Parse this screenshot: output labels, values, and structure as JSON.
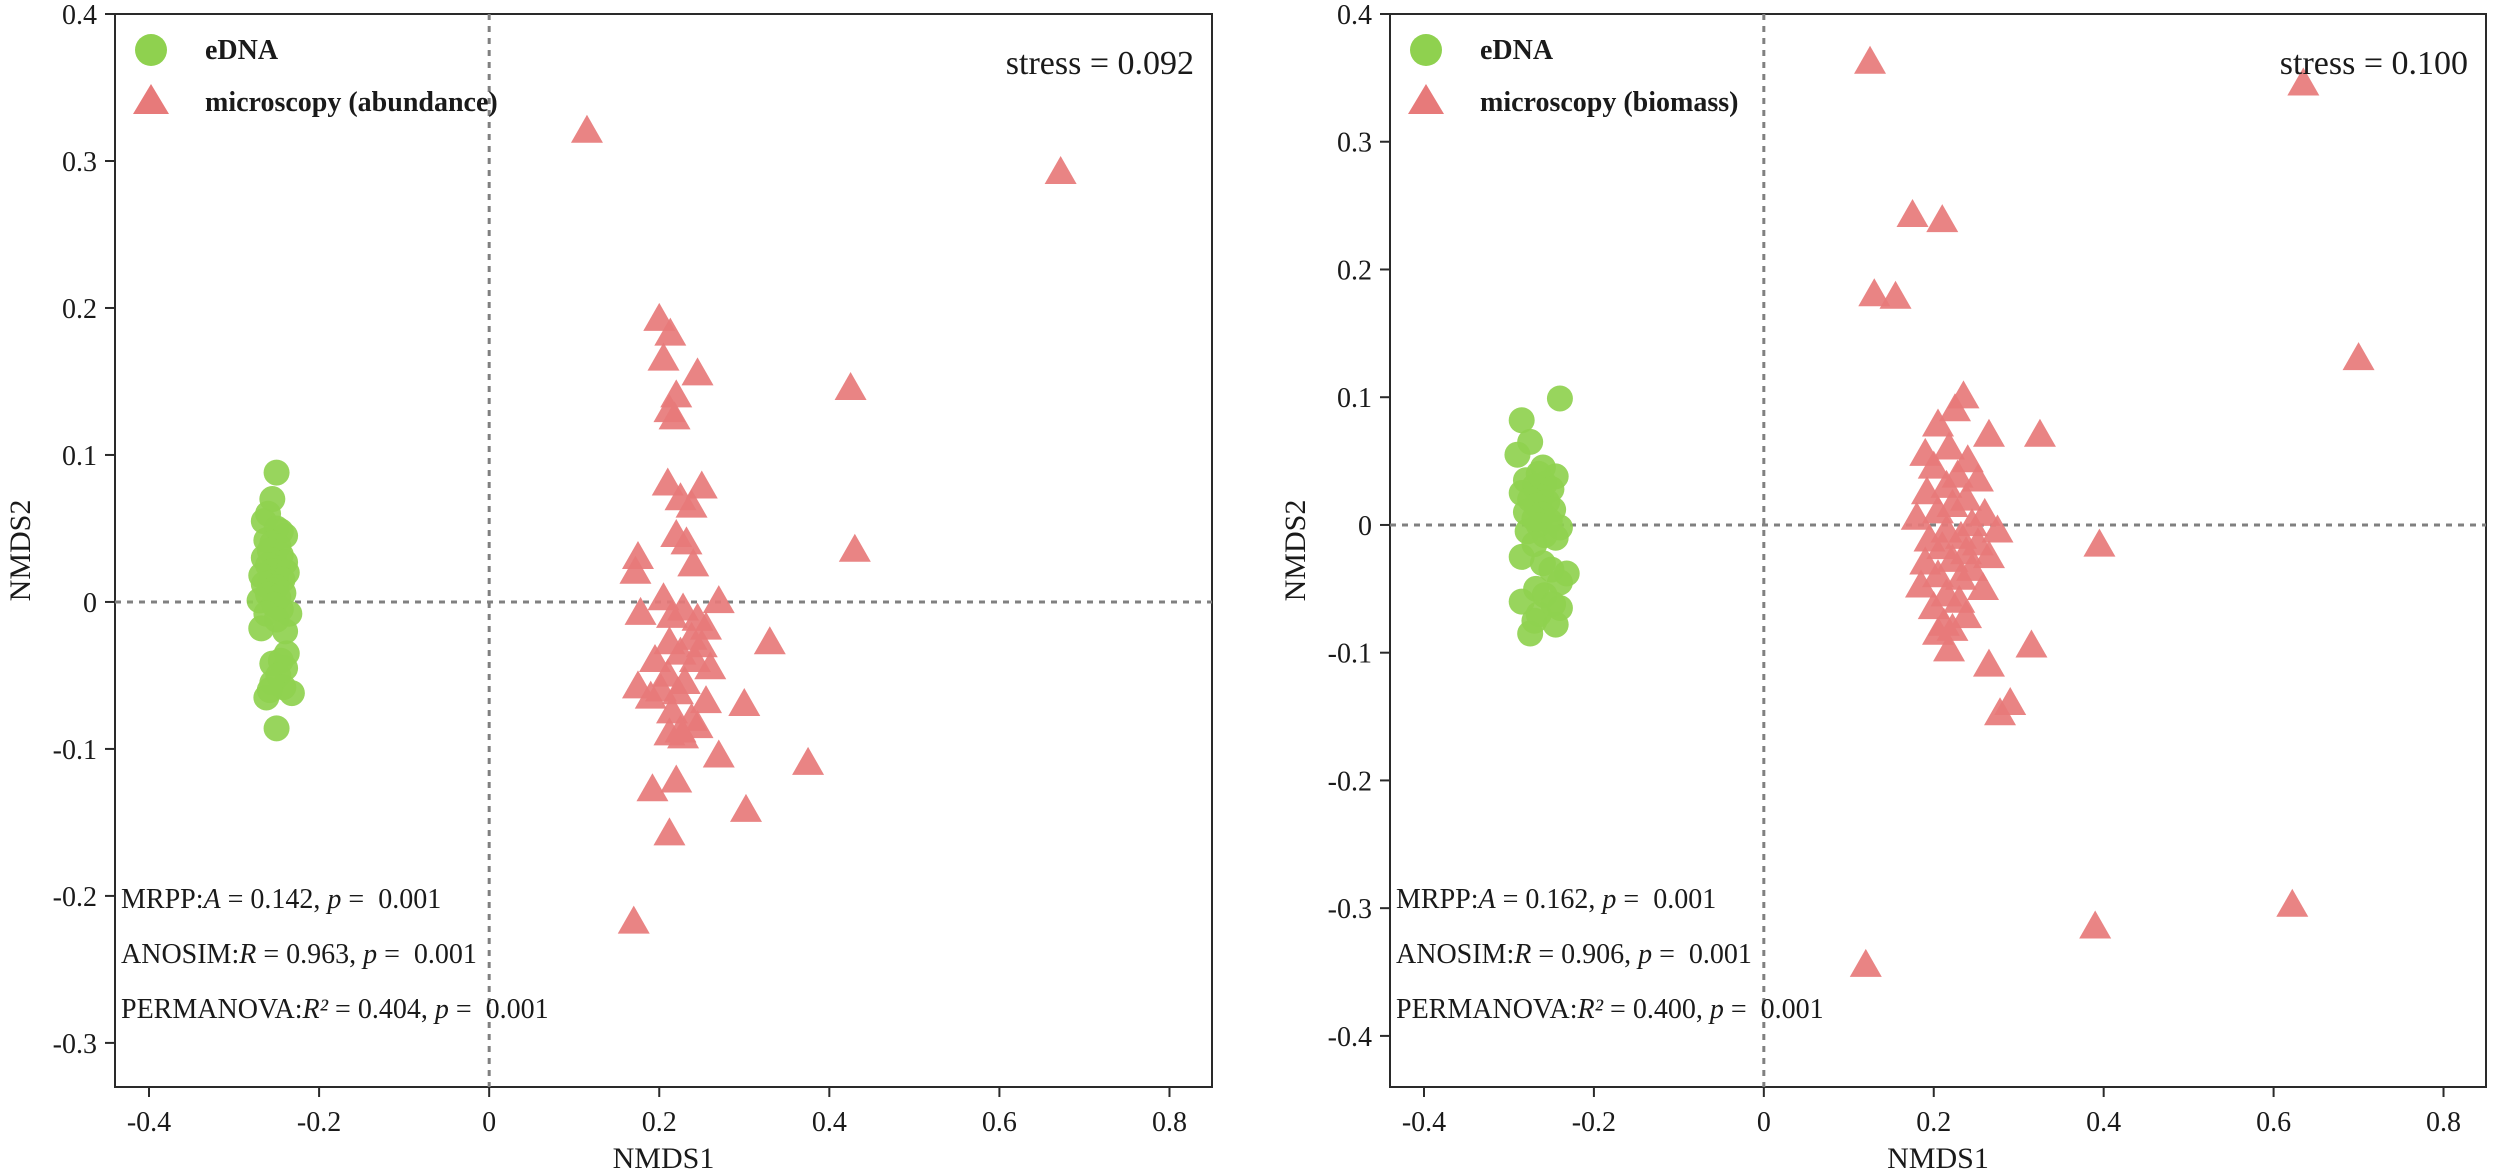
{
  "chart_data": [
    {
      "type": "scatter",
      "title": "",
      "xlabel": "NMDS1",
      "ylabel": "NMDS2",
      "xlim": [
        -0.44,
        0.85
      ],
      "ylim": [
        -0.33,
        0.4
      ],
      "xticks": [
        "-0.4",
        "-0.2",
        "0",
        "0.2",
        "0.4",
        "0.6",
        "0.8"
      ],
      "yticks": [
        "0.4",
        "0.3",
        "0.2",
        "0.1",
        "0",
        "-0.1",
        "-0.2",
        "-0.3"
      ],
      "grid": false,
      "legend_position": "top-left",
      "stress": "stress = 0.092",
      "stats": {
        "mrpp_label": "MRPP:",
        "mrpp_sym": "A",
        "mrpp_value": " = 0.142, ",
        "mrpp_p": "p",
        "mrpp_p_value": " =  0.001",
        "anosim_label": "ANOSIM:",
        "anosim_sym": "R",
        "anosim_value": " = 0.963, ",
        "anosim_p": "p",
        "anosim_p_value": " =  0.001",
        "permanova_label": "PERMANOVA:",
        "permanova_sym": "R²",
        "permanova_value": " = 0.404, ",
        "permanova_p": "p",
        "permanova_p_value": " =  0.001"
      },
      "series": [
        {
          "name": "eDNA",
          "marker": "circle",
          "color": "#8fd14f",
          "points": [
            [
              -0.25,
              0.088
            ],
            [
              -0.255,
              0.07
            ],
            [
              -0.26,
              0.06
            ],
            [
              -0.265,
              0.055
            ],
            [
              -0.25,
              0.05
            ],
            [
              -0.245,
              0.048
            ],
            [
              -0.24,
              0.045
            ],
            [
              -0.262,
              0.042
            ],
            [
              -0.255,
              0.04
            ],
            [
              -0.248,
              0.038
            ],
            [
              -0.258,
              0.035
            ],
            [
              -0.245,
              0.032
            ],
            [
              -0.265,
              0.03
            ],
            [
              -0.252,
              0.028
            ],
            [
              -0.24,
              0.027
            ],
            [
              -0.26,
              0.025
            ],
            [
              -0.248,
              0.023
            ],
            [
              -0.255,
              0.021
            ],
            [
              -0.238,
              0.02
            ],
            [
              -0.268,
              0.018
            ],
            [
              -0.25,
              0.016
            ],
            [
              -0.243,
              0.015
            ],
            [
              -0.258,
              0.013
            ],
            [
              -0.265,
              0.012
            ],
            [
              -0.25,
              0.01
            ],
            [
              -0.255,
              0.008
            ],
            [
              -0.242,
              0.006
            ],
            [
              -0.26,
              0.005
            ],
            [
              -0.248,
              0.003
            ],
            [
              -0.27,
              0.001
            ],
            [
              -0.253,
              -0.002
            ],
            [
              -0.245,
              -0.005
            ],
            [
              -0.262,
              -0.008
            ],
            [
              -0.235,
              -0.008
            ],
            [
              -0.25,
              -0.012
            ],
            [
              -0.268,
              -0.018
            ],
            [
              -0.24,
              -0.02
            ],
            [
              -0.238,
              -0.035
            ],
            [
              -0.245,
              -0.04
            ],
            [
              -0.255,
              -0.042
            ],
            [
              -0.24,
              -0.045
            ],
            [
              -0.248,
              -0.05
            ],
            [
              -0.255,
              -0.055
            ],
            [
              -0.242,
              -0.058
            ],
            [
              -0.232,
              -0.062
            ],
            [
              -0.262,
              -0.065
            ],
            [
              -0.258,
              -0.06
            ],
            [
              -0.25,
              -0.086
            ]
          ]
        },
        {
          "name": "microscopy (abundance)",
          "marker": "triangle",
          "color": "#e77a7a",
          "points": [
            [
              0.115,
              0.32
            ],
            [
              0.672,
              0.292
            ],
            [
              0.2,
              0.192
            ],
            [
              0.213,
              0.182
            ],
            [
              0.245,
              0.155
            ],
            [
              0.205,
              0.165
            ],
            [
              0.22,
              0.14
            ],
            [
              0.425,
              0.145
            ],
            [
              0.212,
              0.13
            ],
            [
              0.218,
              0.125
            ],
            [
              0.21,
              0.08
            ],
            [
              0.25,
              0.078
            ],
            [
              0.225,
              0.07
            ],
            [
              0.238,
              0.065
            ],
            [
              0.22,
              0.045
            ],
            [
              0.232,
              0.04
            ],
            [
              0.43,
              0.035
            ],
            [
              0.175,
              0.03
            ],
            [
              0.24,
              0.025
            ],
            [
              0.172,
              0.02
            ],
            [
              0.205,
              0.002
            ],
            [
              0.27,
              0.0
            ],
            [
              0.228,
              -0.005
            ],
            [
              0.178,
              -0.008
            ],
            [
              0.215,
              -0.01
            ],
            [
              0.245,
              -0.012
            ],
            [
              0.255,
              -0.018
            ],
            [
              0.238,
              -0.025
            ],
            [
              0.212,
              -0.028
            ],
            [
              0.33,
              -0.028
            ],
            [
              0.25,
              -0.03
            ],
            [
              0.225,
              -0.035
            ],
            [
              0.195,
              -0.04
            ],
            [
              0.242,
              -0.04
            ],
            [
              0.26,
              -0.045
            ],
            [
              0.21,
              -0.05
            ],
            [
              0.23,
              -0.055
            ],
            [
              0.175,
              -0.058
            ],
            [
              0.202,
              -0.06
            ],
            [
              0.222,
              -0.062
            ],
            [
              0.19,
              -0.065
            ],
            [
              0.255,
              -0.068
            ],
            [
              0.3,
              -0.07
            ],
            [
              0.215,
              -0.075
            ],
            [
              0.238,
              -0.08
            ],
            [
              0.245,
              -0.085
            ],
            [
              0.225,
              -0.088
            ],
            [
              0.212,
              -0.09
            ],
            [
              0.228,
              -0.092
            ],
            [
              0.27,
              -0.105
            ],
            [
              0.375,
              -0.11
            ],
            [
              0.22,
              -0.122
            ],
            [
              0.192,
              -0.128
            ],
            [
              0.302,
              -0.142
            ],
            [
              0.212,
              -0.158
            ],
            [
              0.17,
              -0.218
            ]
          ]
        }
      ]
    },
    {
      "type": "scatter",
      "title": "",
      "xlabel": "NMDS1",
      "ylabel": "NMDS2",
      "xlim": [
        -0.44,
        0.85
      ],
      "ylim": [
        -0.44,
        0.4
      ],
      "xticks": [
        "-0.4",
        "-0.2",
        "0",
        "0.2",
        "0.4",
        "0.6",
        "0.8"
      ],
      "yticks": [
        "0.4",
        "0.3",
        "0.2",
        "0.1",
        "0",
        "-0.1",
        "-0.2",
        "-0.3",
        "-0.4"
      ],
      "grid": false,
      "legend_position": "top-left",
      "stress": "stress = 0.100",
      "stats": {
        "mrpp_label": "MRPP:",
        "mrpp_sym": "A",
        "mrpp_value": " = 0.162, ",
        "mrpp_p": "p",
        "mrpp_p_value": " =  0.001",
        "anosim_label": "ANOSIM:",
        "anosim_sym": "R",
        "anosim_value": " = 0.906, ",
        "anosim_p": "p",
        "anosim_p_value": " =  0.001",
        "permanova_label": "PERMANOVA:",
        "permanova_sym": "R²",
        "permanova_value": " = 0.400, ",
        "permanova_p": "p",
        "permanova_p_value": " =  0.001"
      },
      "series": [
        {
          "name": "eDNA",
          "marker": "circle",
          "color": "#8fd14f",
          "points": [
            [
              -0.24,
              0.099
            ],
            [
              -0.285,
              0.082
            ],
            [
              -0.275,
              0.065
            ],
            [
              -0.29,
              0.055
            ],
            [
              -0.26,
              0.045
            ],
            [
              -0.265,
              0.04
            ],
            [
              -0.245,
              0.038
            ],
            [
              -0.28,
              0.035
            ],
            [
              -0.258,
              0.032
            ],
            [
              -0.27,
              0.03
            ],
            [
              -0.25,
              0.028
            ],
            [
              -0.285,
              0.025
            ],
            [
              -0.262,
              0.022
            ],
            [
              -0.275,
              0.02
            ],
            [
              -0.255,
              0.018
            ],
            [
              -0.268,
              0.015
            ],
            [
              -0.248,
              0.012
            ],
            [
              -0.28,
              0.01
            ],
            [
              -0.26,
              0.008
            ],
            [
              -0.27,
              0.005
            ],
            [
              -0.252,
              0.003
            ],
            [
              -0.265,
              0.0
            ],
            [
              -0.24,
              -0.002
            ],
            [
              -0.278,
              -0.005
            ],
            [
              -0.258,
              -0.008
            ],
            [
              -0.245,
              -0.01
            ],
            [
              -0.27,
              -0.015
            ],
            [
              -0.285,
              -0.025
            ],
            [
              -0.26,
              -0.03
            ],
            [
              -0.25,
              -0.035
            ],
            [
              -0.232,
              -0.038
            ],
            [
              -0.24,
              -0.045
            ],
            [
              -0.268,
              -0.05
            ],
            [
              -0.258,
              -0.055
            ],
            [
              -0.285,
              -0.06
            ],
            [
              -0.248,
              -0.062
            ],
            [
              -0.24,
              -0.065
            ],
            [
              -0.265,
              -0.07
            ],
            [
              -0.27,
              -0.075
            ],
            [
              -0.245,
              -0.078
            ],
            [
              -0.275,
              -0.085
            ]
          ]
        },
        {
          "name": "microscopy (biomass)",
          "marker": "triangle",
          "color": "#e77a7a",
          "points": [
            [
              0.125,
              0.362
            ],
            [
              0.635,
              0.345
            ],
            [
              0.175,
              0.242
            ],
            [
              0.21,
              0.238
            ],
            [
              0.13,
              0.18
            ],
            [
              0.155,
              0.178
            ],
            [
              0.7,
              0.13
            ],
            [
              0.235,
              0.1
            ],
            [
              0.225,
              0.09
            ],
            [
              0.205,
              0.078
            ],
            [
              0.265,
              0.07
            ],
            [
              0.325,
              0.07
            ],
            [
              0.218,
              0.06
            ],
            [
              0.19,
              0.055
            ],
            [
              0.24,
              0.05
            ],
            [
              0.2,
              0.045
            ],
            [
              0.228,
              0.038
            ],
            [
              0.252,
              0.035
            ],
            [
              0.215,
              0.03
            ],
            [
              0.192,
              0.025
            ],
            [
              0.238,
              0.02
            ],
            [
              0.222,
              0.015
            ],
            [
              0.205,
              0.01
            ],
            [
              0.26,
              0.008
            ],
            [
              0.18,
              0.005
            ],
            [
              0.245,
              0.0
            ],
            [
              0.215,
              -0.005
            ],
            [
              0.275,
              -0.005
            ],
            [
              0.232,
              -0.01
            ],
            [
              0.195,
              -0.012
            ],
            [
              0.252,
              -0.015
            ],
            [
              0.395,
              -0.016
            ],
            [
              0.21,
              -0.018
            ],
            [
              0.238,
              -0.022
            ],
            [
              0.265,
              -0.025
            ],
            [
              0.222,
              -0.028
            ],
            [
              0.19,
              -0.03
            ],
            [
              0.245,
              -0.035
            ],
            [
              0.205,
              -0.04
            ],
            [
              0.232,
              -0.042
            ],
            [
              0.185,
              -0.048
            ],
            [
              0.258,
              -0.05
            ],
            [
              0.215,
              -0.055
            ],
            [
              0.23,
              -0.06
            ],
            [
              0.2,
              -0.065
            ],
            [
              0.238,
              -0.072
            ],
            [
              0.212,
              -0.078
            ],
            [
              0.222,
              -0.082
            ],
            [
              0.205,
              -0.085
            ],
            [
              0.315,
              -0.095
            ],
            [
              0.218,
              -0.098
            ],
            [
              0.265,
              -0.11
            ],
            [
              0.29,
              -0.14
            ],
            [
              0.278,
              -0.148
            ],
            [
              0.622,
              -0.298
            ],
            [
              0.39,
              -0.315
            ],
            [
              0.12,
              -0.345
            ]
          ]
        }
      ]
    }
  ]
}
